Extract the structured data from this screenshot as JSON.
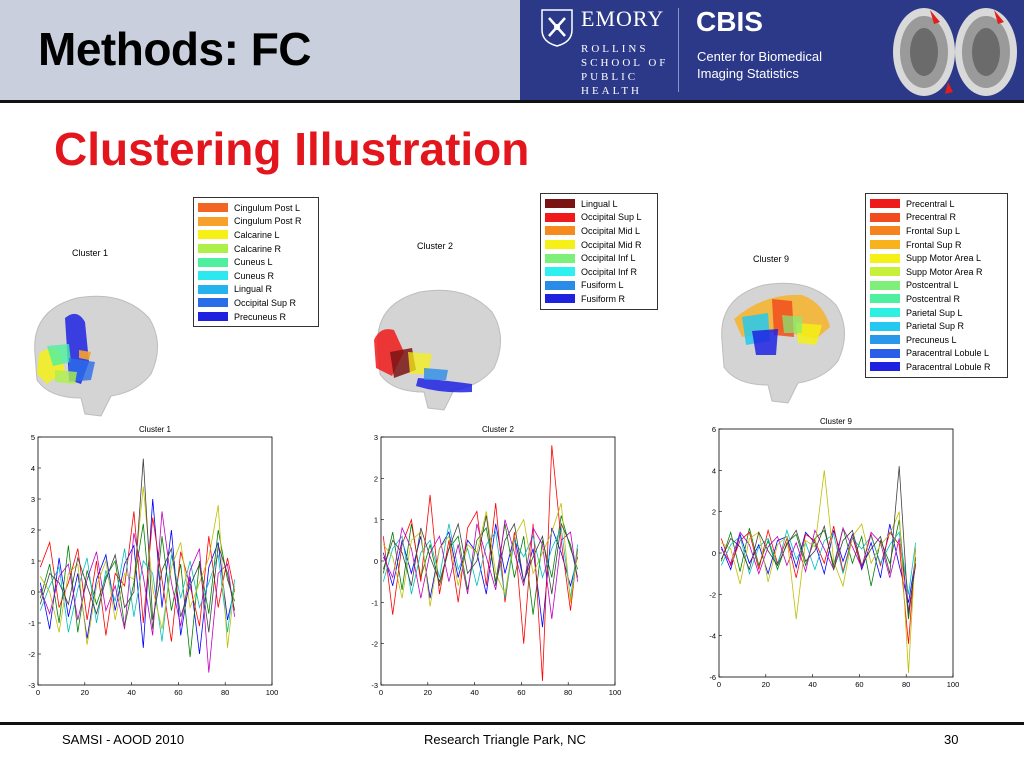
{
  "header": {
    "title": "Methods: FC",
    "emory": "EMORY",
    "rollins_lines": [
      "ROLLINS",
      "SCHOOL OF",
      "PUBLIC",
      "HEALTH"
    ],
    "cbis": "CBIS",
    "cbis_sub_lines": [
      "Center for Biomedical",
      "Imaging Statistics"
    ]
  },
  "subtitle": "Clustering Illustration",
  "clusters": [
    {
      "label": "Cluster 1",
      "legend": [
        {
          "name": "Cingulum Post L",
          "color": "#f26522"
        },
        {
          "name": "Cingulum Post R",
          "color": "#f7a12c"
        },
        {
          "name": "Calcarine L",
          "color": "#f5f016"
        },
        {
          "name": "Calcarine R",
          "color": "#aef04a"
        },
        {
          "name": "Cuneus L",
          "color": "#4ef0a0"
        },
        {
          "name": "Cuneus R",
          "color": "#2ee8f0"
        },
        {
          "name": "Lingual R",
          "color": "#25b3ee"
        },
        {
          "name": "Occipital Sup R",
          "color": "#2a6de8"
        },
        {
          "name": "Precuneus R",
          "color": "#1e22e0"
        }
      ]
    },
    {
      "label": "Cluster 2",
      "legend": [
        {
          "name": "Lingual L",
          "color": "#7a1414"
        },
        {
          "name": "Occipital Sup L",
          "color": "#f01a1a"
        },
        {
          "name": "Occipital Mid L",
          "color": "#f58a1e"
        },
        {
          "name": "Occipital Mid R",
          "color": "#f5f016"
        },
        {
          "name": "Occipital Inf L",
          "color": "#7ef07a"
        },
        {
          "name": "Occipital Inf R",
          "color": "#2ef0f0"
        },
        {
          "name": "Fusiform L",
          "color": "#2a8be8"
        },
        {
          "name": "Fusiform R",
          "color": "#1e22e0"
        }
      ]
    },
    {
      "label": "Cluster 9",
      "legend": [
        {
          "name": "Precentral L",
          "color": "#ee1b1b"
        },
        {
          "name": "Precentral R",
          "color": "#f24c1e"
        },
        {
          "name": "Frontal Sup L",
          "color": "#f5841e"
        },
        {
          "name": "Frontal Sup R",
          "color": "#f7b21e"
        },
        {
          "name": "Supp Motor Area L",
          "color": "#f5f016"
        },
        {
          "name": "Supp Motor Area R",
          "color": "#c6f03a"
        },
        {
          "name": "Postcentral L",
          "color": "#7ef07a"
        },
        {
          "name": "Postcentral R",
          "color": "#4ef0a0"
        },
        {
          "name": "Parietal Sup L",
          "color": "#2ef0e0"
        },
        {
          "name": "Parietal Sup R",
          "color": "#25c8f0"
        },
        {
          "name": "Precuneus L",
          "color": "#2a98e8"
        },
        {
          "name": "Paracentral Lobule L",
          "color": "#2a5de8"
        },
        {
          "name": "Paracentral Lobule R",
          "color": "#1e22e0"
        }
      ]
    }
  ],
  "chart_data": [
    {
      "type": "line",
      "title": "Cluster 1",
      "xlim": [
        0,
        100
      ],
      "ylim": [
        -3,
        5
      ],
      "xticks": [
        0,
        20,
        40,
        60,
        80,
        100
      ],
      "yticks": [
        -3,
        -2,
        -1,
        0,
        1,
        2,
        3,
        4,
        5
      ],
      "x": [
        1,
        5,
        9,
        13,
        17,
        21,
        25,
        29,
        33,
        37,
        41,
        45,
        49,
        53,
        57,
        61,
        65,
        69,
        73,
        77,
        81,
        84
      ],
      "series": [
        {
          "color": "#0000ff",
          "values": [
            0.3,
            -1.2,
            1.1,
            -0.8,
            0.6,
            -1.5,
            0.4,
            1.2,
            -0.6,
            0.9,
            1.5,
            -1.8,
            3.0,
            -0.5,
            2.0,
            -1.4,
            0.5,
            -2.0,
            0.8,
            1.6,
            -0.9,
            0.1
          ]
        },
        {
          "color": "#008000",
          "values": [
            -0.2,
            0.9,
            -1.0,
            1.5,
            -1.3,
            0.7,
            -0.4,
            0.5,
            1.0,
            -1.1,
            0.3,
            2.2,
            -1.2,
            1.8,
            -0.6,
            0.9,
            -2.1,
            1.0,
            -0.7,
            2.0,
            0.4,
            -0.3
          ]
        },
        {
          "color": "#ff0000",
          "values": [
            0.8,
            1.6,
            -0.5,
            0.3,
            1.4,
            -0.9,
            1.0,
            -1.4,
            0.6,
            0.2,
            2.6,
            -1.0,
            2.4,
            0.4,
            -1.6,
            1.3,
            0.2,
            -1.1,
            1.8,
            -0.5,
            1.1,
            0.0
          ]
        },
        {
          "color": "#00bfbf",
          "values": [
            -0.6,
            0.2,
            0.8,
            -1.3,
            0.1,
            1.1,
            -1.0,
            0.7,
            -0.3,
            1.4,
            -0.8,
            1.0,
            0.6,
            -1.6,
            1.2,
            -0.2,
            1.0,
            -0.5,
            0.3,
            1.2,
            -1.3,
            0.4
          ]
        },
        {
          "color": "#bf00bf",
          "values": [
            0.1,
            -0.7,
            0.5,
            0.9,
            -0.9,
            0.4,
            1.3,
            -0.6,
            0.2,
            -1.2,
            1.9,
            0.5,
            -1.4,
            2.6,
            0.3,
            -1.1,
            0.7,
            1.4,
            -2.6,
            0.6,
            0.9,
            -0.8
          ]
        },
        {
          "color": "#bfbf00",
          "values": [
            0.5,
            0.0,
            -1.3,
            0.6,
            0.9,
            -1.7,
            0.2,
            1.0,
            -0.9,
            0.6,
            0.4,
            3.4,
            0.1,
            -1.2,
            0.8,
            1.6,
            -0.5,
            0.3,
            1.1,
            2.8,
            -1.8,
            0.2
          ]
        },
        {
          "color": "#404040",
          "values": [
            -0.4,
            0.6,
            0.3,
            -0.4,
            1.1,
            0.2,
            -0.7,
            0.4,
            1.2,
            -0.5,
            0.0,
            4.3,
            -0.9,
            0.7,
            1.4,
            -0.8,
            0.2,
            0.9,
            -1.3,
            1.5,
            0.6,
            -0.6
          ]
        }
      ]
    },
    {
      "type": "line",
      "title": "Cluster 2",
      "xlim": [
        0,
        100
      ],
      "ylim": [
        -3,
        3
      ],
      "xticks": [
        0,
        20,
        40,
        60,
        80,
        100
      ],
      "yticks": [
        -3,
        -2,
        -1,
        0,
        1,
        2,
        3
      ],
      "x": [
        1,
        5,
        9,
        13,
        17,
        21,
        25,
        29,
        33,
        37,
        41,
        45,
        49,
        53,
        57,
        61,
        65,
        69,
        73,
        77,
        81,
        84
      ],
      "series": [
        {
          "color": "#0000ff",
          "values": [
            0.2,
            -0.6,
            0.5,
            -0.3,
            0.6,
            -0.9,
            0.3,
            0.7,
            -0.4,
            0.5,
            0.2,
            -0.8,
            0.9,
            -0.3,
            0.6,
            -0.5,
            0.3,
            -1.6,
            0.8,
            0.2,
            -0.6,
            0.1
          ]
        },
        {
          "color": "#008000",
          "values": [
            -0.3,
            0.7,
            -0.7,
            0.9,
            -0.4,
            0.4,
            -0.6,
            0.3,
            0.6,
            -0.7,
            0.5,
            0.8,
            -0.5,
            0.9,
            -0.4,
            0.6,
            -1.3,
            0.5,
            -0.4,
            1.1,
            0.3,
            -0.2
          ]
        },
        {
          "color": "#ff0000",
          "values": [
            0.6,
            -1.3,
            0.4,
            1.0,
            -0.5,
            1.6,
            -0.8,
            0.5,
            -1.0,
            0.8,
            1.2,
            -0.6,
            1.4,
            -1.0,
            0.7,
            -2.0,
            0.9,
            -2.9,
            2.8,
            0.5,
            -1.2,
            0.3
          ]
        },
        {
          "color": "#00bfbf",
          "values": [
            -0.5,
            0.3,
            0.6,
            -0.8,
            0.2,
            0.5,
            -0.4,
            0.9,
            -0.2,
            0.3,
            -0.6,
            0.4,
            0.7,
            -0.9,
            0.5,
            0.1,
            0.6,
            -0.4,
            0.3,
            0.8,
            -0.9,
            0.4
          ]
        },
        {
          "color": "#bf00bf",
          "values": [
            0.1,
            -0.4,
            0.8,
            0.3,
            -0.9,
            0.2,
            0.6,
            -0.5,
            0.4,
            -0.8,
            0.9,
            0.1,
            -0.7,
            1.0,
            0.2,
            -0.6,
            0.8,
            0.4,
            -1.4,
            0.5,
            0.7,
            -0.5
          ]
        },
        {
          "color": "#bfbf00",
          "values": [
            0.4,
            0.1,
            -0.9,
            0.5,
            0.7,
            -1.1,
            0.3,
            0.6,
            -0.6,
            0.4,
            0.2,
            1.2,
            -0.3,
            -0.8,
            0.6,
            1.0,
            -0.3,
            0.2,
            0.7,
            1.4,
            -1.0,
            0.2
          ]
        },
        {
          "color": "#404040",
          "values": [
            -0.2,
            0.5,
            0.2,
            -0.6,
            0.8,
            0.1,
            -0.5,
            0.3,
            0.9,
            -0.3,
            0.0,
            1.1,
            -0.6,
            0.5,
            0.9,
            -0.5,
            0.1,
            0.6,
            -0.8,
            0.9,
            0.4,
            -0.4
          ]
        }
      ]
    },
    {
      "type": "line",
      "title": "Cluster 9",
      "xlim": [
        0,
        100
      ],
      "ylim": [
        -6,
        6
      ],
      "xticks": [
        0,
        20,
        40,
        60,
        80,
        100
      ],
      "yticks": [
        -6,
        -4,
        -2,
        0,
        2,
        4,
        6
      ],
      "x": [
        1,
        5,
        9,
        13,
        17,
        21,
        25,
        29,
        33,
        37,
        41,
        45,
        49,
        53,
        57,
        61,
        65,
        69,
        73,
        77,
        81,
        84
      ],
      "series": [
        {
          "color": "#0000ff",
          "values": [
            0.3,
            -0.8,
            0.9,
            -0.5,
            0.4,
            -1.0,
            0.6,
            0.8,
            -0.7,
            1.0,
            0.5,
            -1.0,
            1.1,
            -0.4,
            0.9,
            -0.8,
            0.5,
            -1.2,
            1.4,
            -0.6,
            -2.4,
            -0.3
          ]
        },
        {
          "color": "#008000",
          "values": [
            -0.4,
            1.0,
            -0.9,
            1.2,
            -0.6,
            0.6,
            -0.8,
            0.5,
            0.9,
            -0.6,
            0.7,
            1.1,
            -0.6,
            1.2,
            -0.5,
            0.8,
            -1.6,
            0.6,
            -0.5,
            1.6,
            -3.2,
            -0.2
          ]
        },
        {
          "color": "#ff0000",
          "values": [
            0.7,
            -0.6,
            0.6,
            1.0,
            -0.8,
            1.1,
            -0.5,
            0.7,
            -1.2,
            0.9,
            0.6,
            -0.5,
            1.3,
            -0.9,
            0.8,
            -0.7,
            0.9,
            -0.6,
            1.0,
            0.4,
            -4.4,
            0.2
          ]
        },
        {
          "color": "#00bfbf",
          "values": [
            -0.6,
            0.4,
            0.8,
            -1.0,
            0.3,
            0.7,
            -0.6,
            1.1,
            -0.3,
            0.5,
            -0.8,
            0.6,
            0.9,
            -1.0,
            0.7,
            0.2,
            0.8,
            -0.5,
            0.4,
            1.0,
            -2.0,
            0.5
          ]
        },
        {
          "color": "#bf00bf",
          "values": [
            0.2,
            -0.5,
            1.0,
            0.4,
            -1.0,
            0.3,
            0.8,
            -0.6,
            0.5,
            -0.9,
            1.1,
            0.2,
            -0.8,
            1.2,
            0.3,
            -0.7,
            1.0,
            0.5,
            -1.2,
            0.7,
            -2.8,
            -0.6
          ]
        },
        {
          "color": "#bfbf00",
          "values": [
            0.5,
            0.2,
            -1.5,
            0.7,
            1.0,
            -1.4,
            0.4,
            0.8,
            -3.2,
            0.6,
            0.3,
            4.0,
            -0.4,
            -1.6,
            0.8,
            1.4,
            -0.5,
            0.4,
            0.9,
            2.0,
            -5.8,
            0.3
          ]
        },
        {
          "color": "#404040",
          "values": [
            -0.3,
            0.7,
            0.3,
            -0.8,
            1.0,
            0.1,
            -0.6,
            0.4,
            1.1,
            -0.4,
            0.1,
            1.3,
            -0.8,
            0.6,
            1.1,
            -0.6,
            0.2,
            0.8,
            -1.0,
            4.2,
            -3.0,
            -0.5
          ]
        }
      ]
    }
  ],
  "footer": {
    "left": "SAMSI - AOOD 2010",
    "center": "Research Triangle Park, NC",
    "page": "30"
  }
}
